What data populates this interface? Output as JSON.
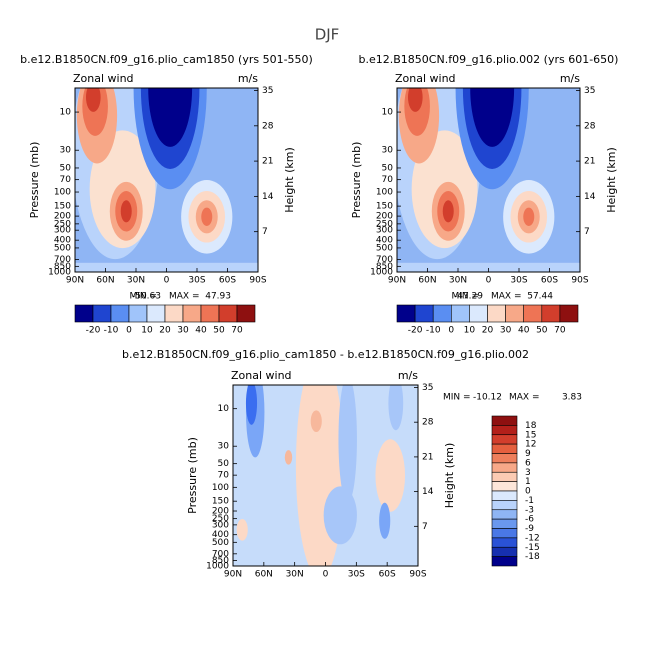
{
  "title": "DJF",
  "chart_data": [
    {
      "type": "contour",
      "title": "b.e12.B1850CN.f09_g16.plio_cam1850 (yrs 501-550)",
      "left_label": "Zonal wind",
      "right_label": "m/s",
      "ylabel": "Pressure (mb)",
      "y2label": "Height (km)",
      "xlim": [
        90,
        -90
      ],
      "xticks": [
        {
          "value": 90,
          "label": "90N"
        },
        {
          "value": 60,
          "label": "60N"
        },
        {
          "value": 30,
          "label": "30N"
        },
        0,
        {
          "value": -30,
          "label": "30S"
        },
        {
          "value": -60,
          "label": "60S"
        },
        {
          "value": -90,
          "label": "90S"
        }
      ],
      "ylim": [
        1000,
        5
      ],
      "log_y": true,
      "yticks": [
        10,
        30,
        50,
        70,
        100,
        150,
        200,
        250,
        300,
        400,
        500,
        700,
        850,
        1000
      ],
      "y2lim": [
        -1,
        35.5
      ],
      "y2ticks": [
        7,
        14,
        21,
        28,
        35
      ],
      "min_label": "MIN =",
      "min": -50.63,
      "max_label": "MAX =",
      "max": 47.93,
      "colorbar": {
        "orientation": "horizontal",
        "levels": [
          -20,
          -10,
          0,
          10,
          20,
          30,
          40,
          50,
          70
        ],
        "colors": [
          "#00008b",
          "#1f45d0",
          "#5a8ef2",
          "#a0c4fa",
          "#dbe9fd",
          "#fcd9c6",
          "#f7a888",
          "#ee7455",
          "#d23e2c",
          "#8e1010"
        ]
      }
    },
    {
      "type": "contour",
      "title": "b.e12.B1850CN.f09_g16.plio.002 (yrs 601-650)",
      "left_label": "Zonal wind",
      "right_label": "m/s",
      "ylabel": "Pressure (mb)",
      "y2label": "Height (km)",
      "xlim": [
        90,
        -90
      ],
      "xticks": [
        {
          "value": 90,
          "label": "90N"
        },
        {
          "value": 60,
          "label": "60N"
        },
        {
          "value": 30,
          "label": "30N"
        },
        0,
        {
          "value": -30,
          "label": "30S"
        },
        {
          "value": -60,
          "label": "60S"
        },
        {
          "value": -90,
          "label": "90S"
        }
      ],
      "ylim": [
        1000,
        5
      ],
      "log_y": true,
      "yticks": [
        10,
        30,
        50,
        70,
        100,
        150,
        200,
        250,
        300,
        400,
        500,
        700,
        850,
        1000
      ],
      "y2lim": [
        -1,
        35.5
      ],
      "y2ticks": [
        7,
        14,
        21,
        28,
        35
      ],
      "min_label": "MIN =",
      "min": -47.29,
      "max_label": "MAX =",
      "max": 57.44,
      "colorbar": {
        "orientation": "horizontal",
        "levels": [
          -20,
          -10,
          0,
          10,
          20,
          30,
          40,
          50,
          70
        ],
        "colors": [
          "#00008b",
          "#1f45d0",
          "#5a8ef2",
          "#a0c4fa",
          "#dbe9fd",
          "#fcd9c6",
          "#f7a888",
          "#ee7455",
          "#d23e2c",
          "#8e1010"
        ]
      }
    },
    {
      "type": "contour",
      "title": "b.e12.B1850CN.f09_g16.plio_cam1850 - b.e12.B1850CN.f09_g16.plio.002",
      "left_label": "Zonal wind",
      "right_label": "m/s",
      "ylabel": "Pressure (mb)",
      "y2label": "Height (km)",
      "xlim": [
        90,
        -90
      ],
      "xticks": [
        {
          "value": 90,
          "label": "90N"
        },
        {
          "value": 60,
          "label": "60N"
        },
        {
          "value": 30,
          "label": "30N"
        },
        0,
        {
          "value": -30,
          "label": "30S"
        },
        {
          "value": -60,
          "label": "60S"
        },
        {
          "value": -90,
          "label": "90S"
        }
      ],
      "ylim": [
        1000,
        5
      ],
      "log_y": true,
      "yticks": [
        10,
        30,
        50,
        70,
        100,
        150,
        200,
        250,
        300,
        400,
        500,
        700,
        850,
        1000
      ],
      "y2lim": [
        -1,
        35.5
      ],
      "y2ticks": [
        7,
        14,
        21,
        28,
        35
      ],
      "min_label": "MIN =",
      "min": -10.12,
      "max_label": "MAX =",
      "max": 3.83,
      "colorbar": {
        "orientation": "vertical",
        "levels": [
          18,
          15,
          12,
          9,
          6,
          3,
          1,
          0,
          -1,
          -3,
          -6,
          -9,
          -12,
          -15,
          -18
        ],
        "colors": [
          "#8e1010",
          "#b3201a",
          "#d23e2c",
          "#e5603f",
          "#ee7f5c",
          "#f7a888",
          "#fbcbb3",
          "#fde6d9",
          "#dbe9fd",
          "#b9d3fb",
          "#8fb5f4",
          "#6a98ee",
          "#4a78e6",
          "#2a52d6",
          "#1630b0",
          "#00008b"
        ]
      }
    }
  ]
}
